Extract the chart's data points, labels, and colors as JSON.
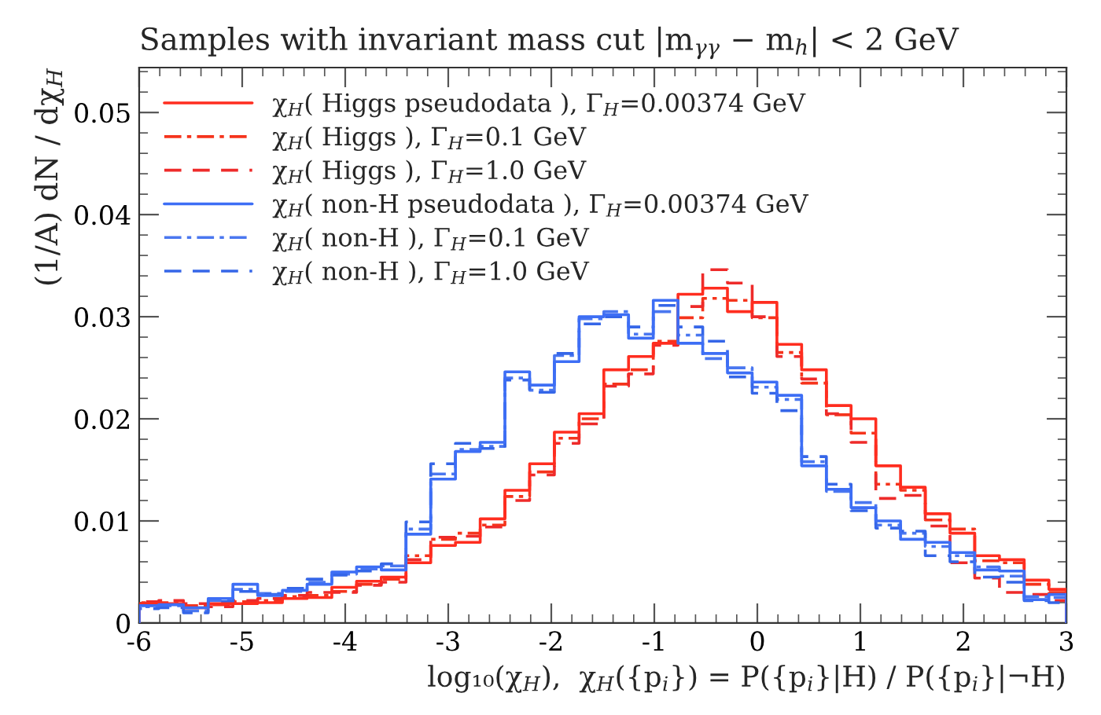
{
  "chart_data": {
    "type": "histogram",
    "title": "Samples with invariant mass cut |m$_{γγ}$ − m$_{h}$| < 2 GeV",
    "xlabel": "log₁₀(χ$_{H}$),  χ$_{H}$({p$_{i}$}) = P({p$_{i}$}|H) / P({p$_{i}$}|¬H)",
    "ylabel": "(1/A) dN / dχ$_{H}$",
    "bins": [
      -6,
      -5.81,
      -5.57,
      -5.33,
      -5.09,
      -4.85,
      -4.61,
      -4.37,
      -4.13,
      -3.89,
      -3.65,
      -3.41,
      -3.17,
      -2.93,
      -2.69,
      -2.45,
      -2.21,
      -1.97,
      -1.73,
      -1.49,
      -1.25,
      -1.01,
      -0.77,
      -0.53,
      -0.29,
      -0.05,
      0.19,
      0.43,
      0.67,
      0.91,
      1.15,
      1.39,
      1.63,
      1.87,
      2.11,
      2.35,
      2.59,
      2.83,
      3
    ],
    "series": [
      {
        "name": "χ$_{H}$( Higgs pseudodata ), Γ$_{H}$=0.00374 GeV",
        "color": "#ff2d1f",
        "line_style": "solid",
        "values": [
          0.0019,
          0.0019,
          0.0015,
          0.0019,
          0.0019,
          0.002,
          0.0024,
          0.0025,
          0.0035,
          0.0041,
          0.0045,
          0.0059,
          0.0076,
          0.0079,
          0.0102,
          0.013,
          0.0156,
          0.0187,
          0.0205,
          0.0248,
          0.0261,
          0.0274,
          0.0322,
          0.0328,
          0.0305,
          0.0314,
          0.0273,
          0.0248,
          0.0213,
          0.02,
          0.0154,
          0.0133,
          0.0107,
          0.0088,
          0.0066,
          0.0062,
          0.0042,
          0.0033
        ]
      },
      {
        "name": "χ$_{H}$( Higgs ), Γ$_{H}$=0.1 GeV",
        "color": "#f5341c",
        "line_style": "dashdot",
        "values": [
          0.002,
          0.002,
          0.0017,
          0.0018,
          0.0021,
          0.0022,
          0.0026,
          0.0027,
          0.0031,
          0.0038,
          0.0043,
          0.0066,
          0.0082,
          0.0088,
          0.0096,
          0.0124,
          0.0148,
          0.0181,
          0.02,
          0.0234,
          0.0248,
          0.0276,
          0.0299,
          0.0318,
          0.0316,
          0.0299,
          0.0265,
          0.0235,
          0.0204,
          0.0186,
          0.0136,
          0.013,
          0.0101,
          0.0092,
          0.0061,
          0.0059,
          0.0038,
          0.003
        ]
      },
      {
        "name": "χ$_{H}$( Higgs ), Γ$_{H}$=1.0 GeV",
        "color": "#ee2b2a",
        "line_style": "dashed",
        "values": [
          0.0021,
          0.0022,
          0.0019,
          0.0016,
          0.0022,
          0.0024,
          0.0027,
          0.003,
          0.003,
          0.0037,
          0.004,
          0.0062,
          0.0084,
          0.0085,
          0.0094,
          0.012,
          0.0145,
          0.0176,
          0.0195,
          0.0232,
          0.0244,
          0.0272,
          0.031,
          0.0346,
          0.0333,
          0.03,
          0.0261,
          0.0239,
          0.0205,
          0.0177,
          0.0122,
          0.0125,
          0.0095,
          0.0059,
          0.0044,
          0.003,
          0.0028,
          0.0022
        ]
      },
      {
        "name": "χ$_{H}$( non-H pseudodata ), Γ$_{H}$=0.00374 GeV",
        "color": "#3d6ef5",
        "line_style": "solid",
        "values": [
          0.0017,
          0.0018,
          0.0015,
          0.0024,
          0.0038,
          0.0027,
          0.0032,
          0.0038,
          0.005,
          0.0055,
          0.0052,
          0.0087,
          0.0141,
          0.0168,
          0.0177,
          0.0246,
          0.0233,
          0.0256,
          0.03,
          0.0302,
          0.0279,
          0.0316,
          0.0274,
          0.0264,
          0.0245,
          0.0236,
          0.0223,
          0.0154,
          0.0131,
          0.0113,
          0.01,
          0.0082,
          0.0079,
          0.0069,
          0.0052,
          0.0051,
          0.0023,
          0.0028
        ]
      },
      {
        "name": "χ$_{H}$( non-H ), Γ$_{H}$=0.1 GeV",
        "color": "#4a77f0",
        "line_style": "dashdot",
        "values": [
          0.0016,
          0.0017,
          0.0012,
          0.0022,
          0.0033,
          0.0029,
          0.0031,
          0.004,
          0.0048,
          0.0053,
          0.0056,
          0.0092,
          0.0146,
          0.017,
          0.0173,
          0.024,
          0.0228,
          0.0262,
          0.0298,
          0.0305,
          0.0283,
          0.0305,
          0.0282,
          0.0259,
          0.025,
          0.0231,
          0.0219,
          0.0158,
          0.0129,
          0.0118,
          0.0096,
          0.0088,
          0.0075,
          0.0066,
          0.0055,
          0.0046,
          0.0026,
          0.0025
        ]
      },
      {
        "name": "χ$_{H}$( non-H ), Γ$_{H}$=1.0 GeV",
        "color": "#3566e8",
        "line_style": "dashed",
        "values": [
          0.0014,
          0.0015,
          0.001,
          0.0021,
          0.0031,
          0.0028,
          0.0034,
          0.0043,
          0.0047,
          0.0051,
          0.0058,
          0.0099,
          0.0156,
          0.0176,
          0.0171,
          0.0238,
          0.0226,
          0.0264,
          0.0293,
          0.03,
          0.029,
          0.0311,
          0.029,
          0.0276,
          0.0241,
          0.0225,
          0.0208,
          0.0163,
          0.0136,
          0.011,
          0.0093,
          0.009,
          0.0066,
          0.006,
          0.0045,
          0.004,
          0.0022,
          0.002
        ]
      }
    ],
    "xlim": [
      -6,
      3
    ],
    "xticks": [
      -6,
      -5,
      -4,
      -3,
      -2,
      -1,
      0,
      1,
      2,
      3
    ],
    "ylim": [
      0,
      0.0544
    ],
    "yticks": [
      0,
      0.01,
      0.02,
      0.03,
      0.04,
      0.05
    ],
    "grid": false,
    "legend": "top left"
  }
}
